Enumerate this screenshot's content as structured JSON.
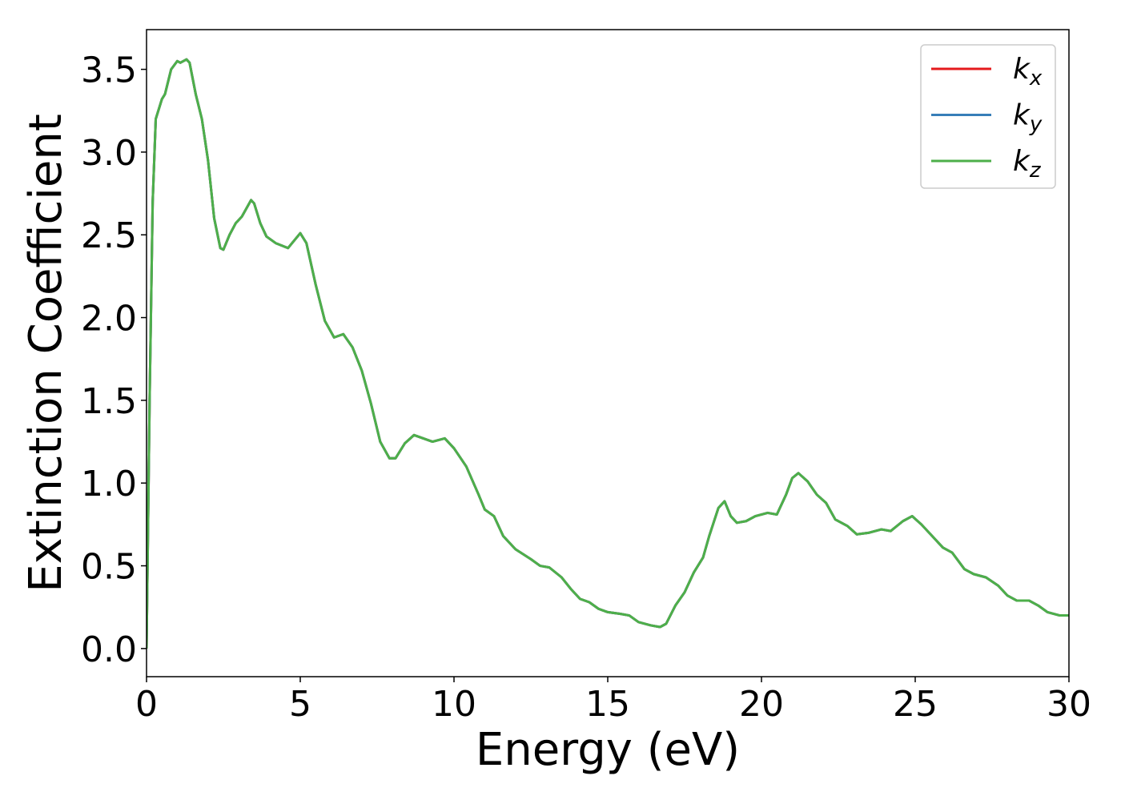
{
  "chart_data": {
    "type": "line",
    "x_label": "Energy (eV)",
    "y_label": "Extinction Coefficient",
    "xlim": [
      0,
      30
    ],
    "ylim": [
      -0.17,
      3.74
    ],
    "xticks": [
      0,
      5,
      10,
      15,
      20,
      25,
      30
    ],
    "yticks": [
      {
        "value": 0,
        "label": "0.0"
      },
      0.5,
      {
        "value": 1,
        "label": "1.0"
      },
      1.5,
      {
        "value": 2,
        "label": "2.0"
      },
      2.5,
      {
        "value": 3,
        "label": "3.0"
      },
      3.5
    ],
    "legend": "upper right",
    "x": [
      0,
      0.1,
      0.2,
      0.3,
      0.5,
      0.6,
      0.8,
      1.0,
      1.1,
      1.3,
      1.4,
      1.6,
      1.8,
      2.0,
      2.2,
      2.4,
      2.5,
      2.7,
      2.9,
      3.1,
      3.4,
      3.5,
      3.7,
      3.9,
      4.2,
      4.6,
      5.0,
      5.2,
      5.5,
      5.8,
      6.1,
      6.4,
      6.7,
      7.0,
      7.3,
      7.6,
      7.9,
      8.1,
      8.4,
      8.7,
      9.0,
      9.3,
      9.7,
      10.0,
      10.4,
      10.8,
      11.0,
      11.3,
      11.6,
      12.0,
      12.5,
      12.8,
      13.1,
      13.5,
      13.8,
      14.1,
      14.4,
      14.7,
      15.0,
      15.4,
      15.7,
      16.0,
      16.4,
      16.7,
      16.9,
      17.2,
      17.5,
      17.8,
      18.1,
      18.3,
      18.6,
      18.8,
      19.0,
      19.2,
      19.5,
      19.8,
      20.2,
      20.5,
      20.8,
      21.0,
      21.2,
      21.5,
      21.8,
      22.1,
      22.4,
      22.8,
      23.1,
      23.5,
      23.9,
      24.2,
      24.6,
      24.9,
      25.2,
      25.5,
      25.9,
      26.2,
      26.6,
      26.9,
      27.3,
      27.7,
      28.0,
      28.3,
      28.7,
      29.0,
      29.3,
      29.7,
      30.0
    ],
    "series": [
      {
        "name": "kx",
        "color": "#e41a1c",
        "values": [
          0,
          1.5,
          2.7,
          3.2,
          3.32,
          3.35,
          3.5,
          3.55,
          3.54,
          3.56,
          3.54,
          3.35,
          3.2,
          2.95,
          2.6,
          2.42,
          2.41,
          2.5,
          2.57,
          2.61,
          2.71,
          2.69,
          2.57,
          2.49,
          2.45,
          2.42,
          2.51,
          2.45,
          2.2,
          1.98,
          1.88,
          1.9,
          1.82,
          1.68,
          1.48,
          1.25,
          1.15,
          1.15,
          1.24,
          1.29,
          1.27,
          1.25,
          1.27,
          1.21,
          1.1,
          0.93,
          0.84,
          0.8,
          0.68,
          0.6,
          0.54,
          0.5,
          0.49,
          0.43,
          0.36,
          0.3,
          0.28,
          0.24,
          0.22,
          0.21,
          0.2,
          0.16,
          0.14,
          0.13,
          0.15,
          0.26,
          0.34,
          0.46,
          0.55,
          0.68,
          0.85,
          0.89,
          0.8,
          0.76,
          0.77,
          0.8,
          0.82,
          0.81,
          0.93,
          1.03,
          1.06,
          1.01,
          0.93,
          0.88,
          0.78,
          0.74,
          0.69,
          0.7,
          0.72,
          0.71,
          0.77,
          0.8,
          0.75,
          0.69,
          0.61,
          0.58,
          0.48,
          0.45,
          0.43,
          0.38,
          0.32,
          0.29,
          0.29,
          0.26,
          0.22,
          0.2,
          0.2
        ]
      },
      {
        "name": "ky",
        "color": "#377eb8",
        "values": [
          0,
          1.5,
          2.7,
          3.2,
          3.32,
          3.35,
          3.5,
          3.55,
          3.54,
          3.56,
          3.54,
          3.35,
          3.2,
          2.95,
          2.6,
          2.42,
          2.41,
          2.5,
          2.57,
          2.61,
          2.71,
          2.69,
          2.57,
          2.49,
          2.45,
          2.42,
          2.51,
          2.45,
          2.2,
          1.98,
          1.88,
          1.9,
          1.82,
          1.68,
          1.48,
          1.25,
          1.15,
          1.15,
          1.24,
          1.29,
          1.27,
          1.25,
          1.27,
          1.21,
          1.1,
          0.93,
          0.84,
          0.8,
          0.68,
          0.6,
          0.54,
          0.5,
          0.49,
          0.43,
          0.36,
          0.3,
          0.28,
          0.24,
          0.22,
          0.21,
          0.2,
          0.16,
          0.14,
          0.13,
          0.15,
          0.26,
          0.34,
          0.46,
          0.55,
          0.68,
          0.85,
          0.89,
          0.8,
          0.76,
          0.77,
          0.8,
          0.82,
          0.81,
          0.93,
          1.03,
          1.06,
          1.01,
          0.93,
          0.88,
          0.78,
          0.74,
          0.69,
          0.7,
          0.72,
          0.71,
          0.77,
          0.8,
          0.75,
          0.69,
          0.61,
          0.58,
          0.48,
          0.45,
          0.43,
          0.38,
          0.32,
          0.29,
          0.29,
          0.26,
          0.22,
          0.2,
          0.2
        ]
      },
      {
        "name": "kz",
        "color": "#4daf4a",
        "values": [
          0,
          1.5,
          2.7,
          3.2,
          3.32,
          3.35,
          3.5,
          3.55,
          3.54,
          3.56,
          3.54,
          3.35,
          3.2,
          2.95,
          2.6,
          2.42,
          2.41,
          2.5,
          2.57,
          2.61,
          2.71,
          2.69,
          2.57,
          2.49,
          2.45,
          2.42,
          2.51,
          2.45,
          2.2,
          1.98,
          1.88,
          1.9,
          1.82,
          1.68,
          1.48,
          1.25,
          1.15,
          1.15,
          1.24,
          1.29,
          1.27,
          1.25,
          1.27,
          1.21,
          1.1,
          0.93,
          0.84,
          0.8,
          0.68,
          0.6,
          0.54,
          0.5,
          0.49,
          0.43,
          0.36,
          0.3,
          0.28,
          0.24,
          0.22,
          0.21,
          0.2,
          0.16,
          0.14,
          0.13,
          0.15,
          0.26,
          0.34,
          0.46,
          0.55,
          0.68,
          0.85,
          0.89,
          0.8,
          0.76,
          0.77,
          0.8,
          0.82,
          0.81,
          0.93,
          1.03,
          1.06,
          1.01,
          0.93,
          0.88,
          0.78,
          0.74,
          0.69,
          0.7,
          0.72,
          0.71,
          0.77,
          0.8,
          0.75,
          0.69,
          0.61,
          0.58,
          0.48,
          0.45,
          0.43,
          0.38,
          0.32,
          0.29,
          0.29,
          0.26,
          0.22,
          0.2,
          0.2
        ]
      }
    ]
  }
}
